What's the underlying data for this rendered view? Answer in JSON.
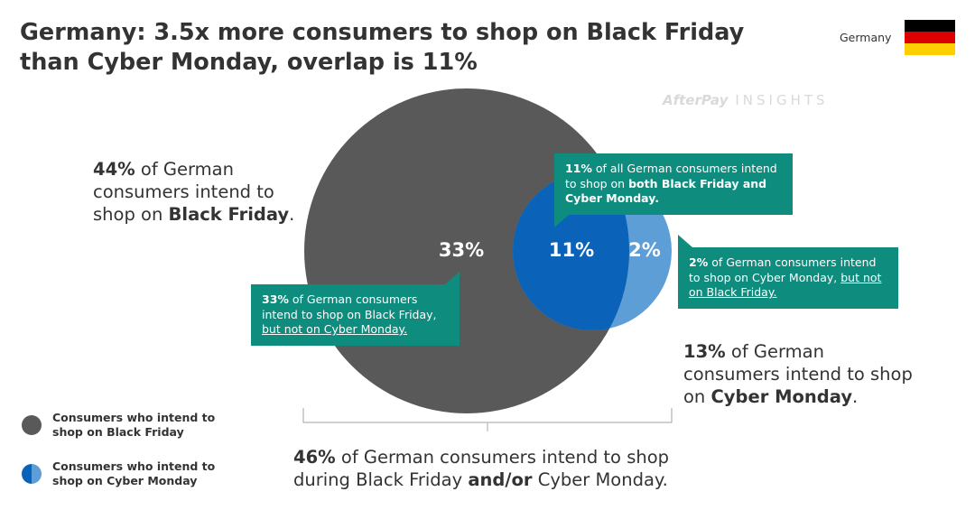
{
  "header": {
    "title": "Germany: 3.5x more consumers to shop on Black Friday than Cyber Monday, overlap is 11%",
    "country": "Germany",
    "brand_logo": "AfterPay",
    "brand_suffix": "INSIGHTS"
  },
  "colors": {
    "black_friday": "#595959",
    "overlap": "#0a63b8",
    "cyber_monday": "#5e9ed6",
    "callout": "#0e8c7d",
    "flag": [
      "#000000",
      "#dd0000",
      "#ffce00"
    ]
  },
  "chart_data": {
    "type": "venn",
    "sets": [
      {
        "name": "Black Friday",
        "total_pct": 44,
        "only_pct": 33
      },
      {
        "name": "Cyber Monday",
        "total_pct": 13,
        "only_pct": 2
      }
    ],
    "overlap_pct": 11,
    "union_pct": 46,
    "region_labels": {
      "bf_only": "33%",
      "overlap": "11%",
      "cm_only": "2%"
    }
  },
  "annotations": {
    "bf_total": {
      "pct": "44%",
      "pre": " of German consumers intend to shop on ",
      "bold": "Black Friday",
      "post": "."
    },
    "cm_total": {
      "pct": "13%",
      "pre": " of German consumers intend to shop on ",
      "bold": "Cyber Monday",
      "post": "."
    },
    "union": {
      "pct": "46%",
      "pre": " of German consumers intend to shop during Black Friday ",
      "bold": "and/or",
      "post": " Cyber Monday."
    }
  },
  "callouts": {
    "overlap": {
      "pct": "11%",
      "pre": " of all German consumers intend to shop on ",
      "bold": "both Black Friday and Cyber Monday."
    },
    "bf_only": {
      "pct": "33%",
      "pre": " of German consumers intend to shop on Black Friday, ",
      "underline": "but not on Cyber Monday."
    },
    "cm_only": {
      "pct": "2%",
      "pre": " of German consumers intend to shop on Cyber Monday, ",
      "underline": "but not on Black Friday."
    }
  },
  "legend": [
    {
      "label": "Consumers who intend to shop on Black Friday",
      "kind": "solid"
    },
    {
      "label": "Consumers who intend to shop on Cyber Monday",
      "kind": "split"
    }
  ]
}
